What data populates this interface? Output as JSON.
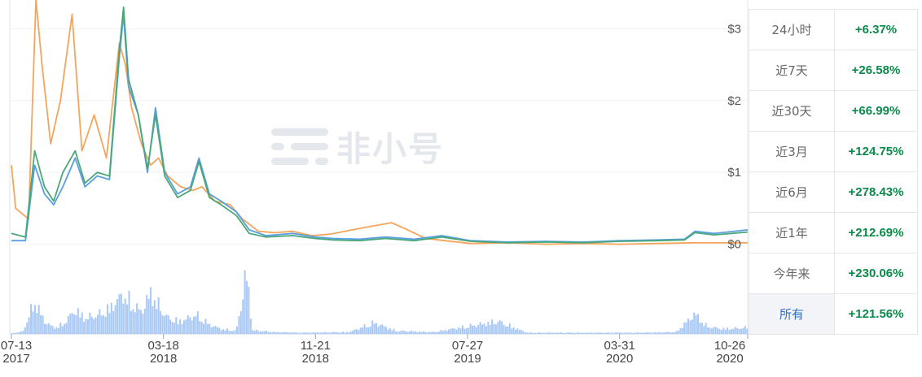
{
  "chart_data": {
    "type": "line",
    "y_axis": {
      "ticks": [
        "$0",
        "$1",
        "$2",
        "$3"
      ],
      "tick_values": [
        0,
        1,
        2,
        3
      ],
      "ylim": [
        -0.05,
        3.4
      ],
      "position": "right"
    },
    "x_axis": {
      "ticks": [
        {
          "day": "07-13",
          "year": "2017",
          "date": "2017-07-13"
        },
        {
          "day": "03-18",
          "year": "2018",
          "date": "2018-03-18"
        },
        {
          "day": "11-21",
          "year": "2018",
          "date": "2018-11-21"
        },
        {
          "day": "07-27",
          "year": "2019",
          "date": "2019-07-27"
        },
        {
          "day": "03-31",
          "year": "2020",
          "date": "2020-03-31"
        },
        {
          "day": "10-26",
          "year": "2020",
          "date": "2020-10-26"
        }
      ]
    },
    "series": [
      {
        "color": "#f5a55b",
        "points": [
          [
            "2017-07-13",
            1.1
          ],
          [
            "2017-07-20",
            0.5
          ],
          [
            "2017-08-10",
            0.35
          ],
          [
            "2017-08-22",
            3.4
          ],
          [
            "2017-09-01",
            2.5
          ],
          [
            "2017-09-15",
            1.4
          ],
          [
            "2017-10-01",
            2.0
          ],
          [
            "2017-10-20",
            3.2
          ],
          [
            "2017-11-05",
            1.3
          ],
          [
            "2017-11-25",
            1.8
          ],
          [
            "2017-12-15",
            1.2
          ],
          [
            "2018-01-05",
            2.8
          ],
          [
            "2018-01-15",
            2.5
          ],
          [
            "2018-01-25",
            1.9
          ],
          [
            "2018-02-10",
            1.4
          ],
          [
            "2018-02-25",
            1.1
          ],
          [
            "2018-03-10",
            1.2
          ],
          [
            "2018-03-25",
            0.95
          ],
          [
            "2018-04-15",
            0.8
          ],
          [
            "2018-05-05",
            0.75
          ],
          [
            "2018-05-20",
            0.8
          ],
          [
            "2018-06-10",
            0.6
          ],
          [
            "2018-07-05",
            0.55
          ],
          [
            "2018-07-25",
            0.35
          ],
          [
            "2018-08-20",
            0.18
          ],
          [
            "2018-09-15",
            0.16
          ],
          [
            "2018-10-15",
            0.18
          ],
          [
            "2018-11-15",
            0.12
          ],
          [
            "2018-12-15",
            0.14
          ],
          [
            "2019-01-20",
            0.2
          ],
          [
            "2019-02-20",
            0.25
          ],
          [
            "2019-03-25",
            0.3
          ],
          [
            "2019-04-15",
            0.22
          ],
          [
            "2019-05-20",
            0.08
          ],
          [
            "2019-06-20",
            0.05
          ],
          [
            "2019-08-01",
            0.01
          ],
          [
            "2019-10-01",
            0.02
          ],
          [
            "2019-12-01",
            0.0
          ],
          [
            "2020-02-01",
            0.01
          ],
          [
            "2020-04-01",
            0.0
          ],
          [
            "2020-06-01",
            0.01
          ],
          [
            "2020-08-01",
            0.02
          ],
          [
            "2020-10-26",
            0.02
          ]
        ]
      },
      {
        "color": "#5a9fe0",
        "points": [
          [
            "2017-07-13",
            0.05
          ],
          [
            "2017-08-05",
            0.05
          ],
          [
            "2017-08-20",
            1.1
          ],
          [
            "2017-09-05",
            0.7
          ],
          [
            "2017-09-20",
            0.55
          ],
          [
            "2017-10-05",
            0.8
          ],
          [
            "2017-10-25",
            1.2
          ],
          [
            "2017-11-10",
            0.8
          ],
          [
            "2017-11-30",
            0.95
          ],
          [
            "2017-12-20",
            0.9
          ],
          [
            "2018-01-05",
            2.6
          ],
          [
            "2018-01-12",
            3.2
          ],
          [
            "2018-01-20",
            2.2
          ],
          [
            "2018-02-05",
            1.8
          ],
          [
            "2018-02-20",
            1.0
          ],
          [
            "2018-03-05",
            1.9
          ],
          [
            "2018-03-20",
            1.0
          ],
          [
            "2018-04-10",
            0.7
          ],
          [
            "2018-05-01",
            0.8
          ],
          [
            "2018-05-15",
            1.2
          ],
          [
            "2018-06-01",
            0.7
          ],
          [
            "2018-06-20",
            0.6
          ],
          [
            "2018-07-15",
            0.45
          ],
          [
            "2018-08-05",
            0.2
          ],
          [
            "2018-09-01",
            0.12
          ],
          [
            "2018-10-15",
            0.15
          ],
          [
            "2018-11-20",
            0.1
          ],
          [
            "2018-12-20",
            0.08
          ],
          [
            "2019-02-01",
            0.07
          ],
          [
            "2019-03-15",
            0.1
          ],
          [
            "2019-05-01",
            0.07
          ],
          [
            "2019-06-15",
            0.12
          ],
          [
            "2019-08-01",
            0.05
          ],
          [
            "2019-10-01",
            0.03
          ],
          [
            "2019-12-01",
            0.04
          ],
          [
            "2020-02-01",
            0.03
          ],
          [
            "2020-04-01",
            0.05
          ],
          [
            "2020-06-01",
            0.06
          ],
          [
            "2020-07-15",
            0.07
          ],
          [
            "2020-08-01",
            0.18
          ],
          [
            "2020-09-01",
            0.15
          ],
          [
            "2020-10-26",
            0.2
          ]
        ]
      },
      {
        "color": "#4aa878",
        "points": [
          [
            "2017-07-13",
            0.15
          ],
          [
            "2017-08-05",
            0.1
          ],
          [
            "2017-08-20",
            1.3
          ],
          [
            "2017-09-05",
            0.8
          ],
          [
            "2017-09-20",
            0.6
          ],
          [
            "2017-10-05",
            1.0
          ],
          [
            "2017-10-25",
            1.3
          ],
          [
            "2017-11-10",
            0.85
          ],
          [
            "2017-11-30",
            1.0
          ],
          [
            "2017-12-20",
            0.95
          ],
          [
            "2018-01-05",
            2.7
          ],
          [
            "2018-01-12",
            3.3
          ],
          [
            "2018-01-20",
            2.3
          ],
          [
            "2018-02-05",
            1.8
          ],
          [
            "2018-02-20",
            1.05
          ],
          [
            "2018-03-05",
            1.8
          ],
          [
            "2018-03-20",
            0.95
          ],
          [
            "2018-04-10",
            0.65
          ],
          [
            "2018-05-01",
            0.75
          ],
          [
            "2018-05-15",
            1.15
          ],
          [
            "2018-06-01",
            0.65
          ],
          [
            "2018-06-20",
            0.55
          ],
          [
            "2018-07-15",
            0.4
          ],
          [
            "2018-08-05",
            0.15
          ],
          [
            "2018-09-01",
            0.1
          ],
          [
            "2018-10-15",
            0.12
          ],
          [
            "2018-11-20",
            0.08
          ],
          [
            "2018-12-20",
            0.06
          ],
          [
            "2019-02-01",
            0.05
          ],
          [
            "2019-03-15",
            0.08
          ],
          [
            "2019-05-01",
            0.05
          ],
          [
            "2019-06-15",
            0.1
          ],
          [
            "2019-08-01",
            0.04
          ],
          [
            "2019-10-01",
            0.02
          ],
          [
            "2019-12-01",
            0.03
          ],
          [
            "2020-02-01",
            0.02
          ],
          [
            "2020-04-01",
            0.04
          ],
          [
            "2020-06-01",
            0.05
          ],
          [
            "2020-07-15",
            0.06
          ],
          [
            "2020-08-01",
            0.16
          ],
          [
            "2020-09-01",
            0.13
          ],
          [
            "2020-10-26",
            0.17
          ]
        ]
      }
    ],
    "volume": {
      "color": "#a8c8f5",
      "points": [
        [
          "2017-07-13",
          0.01
        ],
        [
          "2017-08-01",
          0.04
        ],
        [
          "2017-08-20",
          0.52
        ],
        [
          "2017-09-05",
          0.2
        ],
        [
          "2017-09-20",
          0.1
        ],
        [
          "2017-10-05",
          0.15
        ],
        [
          "2017-10-25",
          0.38
        ],
        [
          "2017-11-10",
          0.25
        ],
        [
          "2017-12-01",
          0.3
        ],
        [
          "2017-12-20",
          0.4
        ],
        [
          "2018-01-05",
          0.56
        ],
        [
          "2018-01-12",
          0.62
        ],
        [
          "2018-01-25",
          0.48
        ],
        [
          "2018-02-10",
          0.35
        ],
        [
          "2018-02-25",
          0.65
        ],
        [
          "2018-03-10",
          0.45
        ],
        [
          "2018-03-25",
          0.25
        ],
        [
          "2018-04-15",
          0.2
        ],
        [
          "2018-05-10",
          0.3
        ],
        [
          "2018-06-01",
          0.15
        ],
        [
          "2018-06-20",
          0.08
        ],
        [
          "2018-07-15",
          0.05
        ],
        [
          "2018-08-01",
          1.0
        ],
        [
          "2018-08-10",
          0.06
        ],
        [
          "2018-09-15",
          0.03
        ],
        [
          "2018-11-01",
          0.02
        ],
        [
          "2019-01-15",
          0.03
        ],
        [
          "2019-02-25",
          0.18
        ],
        [
          "2019-04-01",
          0.05
        ],
        [
          "2019-06-01",
          0.03
        ],
        [
          "2019-09-15",
          0.2
        ],
        [
          "2019-11-01",
          0.02
        ],
        [
          "2020-01-01",
          0.02
        ],
        [
          "2020-03-01",
          0.02
        ],
        [
          "2020-05-01",
          0.02
        ],
        [
          "2020-07-01",
          0.03
        ],
        [
          "2020-08-01",
          0.32
        ],
        [
          "2020-08-20",
          0.12
        ],
        [
          "2020-09-15",
          0.08
        ],
        [
          "2020-10-26",
          0.1
        ]
      ]
    }
  },
  "watermark": {
    "text": "非小号"
  },
  "performance": [
    {
      "period": "24小时",
      "change": "+6.37%"
    },
    {
      "period": "近7天",
      "change": "+26.58%"
    },
    {
      "period": "近30天",
      "change": "+66.99%"
    },
    {
      "period": "近3月",
      "change": "+124.75%"
    },
    {
      "period": "近6月",
      "change": "+278.43%"
    },
    {
      "period": "近1年",
      "change": "+212.69%"
    },
    {
      "period": "今年来",
      "change": "+230.06%"
    },
    {
      "period": "所有",
      "change": "+121.56%",
      "active": true
    }
  ]
}
